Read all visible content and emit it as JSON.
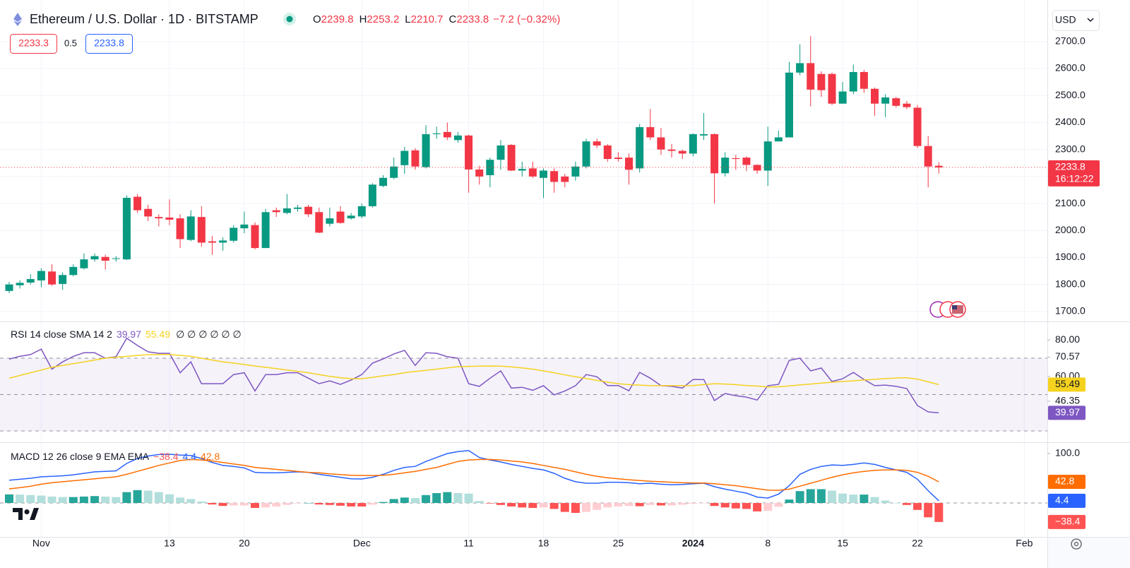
{
  "chart_data": [
    {
      "type": "candlestick",
      "title": "Ethereum / U.S. Dollar · 1D · BITSTAMP",
      "currency": "USD",
      "bid": 2233.3,
      "spread": 0.5,
      "ask": 2233.8,
      "ohlc_letters": [
        "O",
        "H",
        "L",
        "C"
      ],
      "change_label": "−7.2 (−0.32%)",
      "countdown": "16:12:22",
      "categories": [
        null,
        null,
        null,
        "Nov",
        null,
        null,
        null,
        null,
        null,
        null,
        null,
        null,
        null,
        null,
        null,
        "13",
        null,
        null,
        null,
        null,
        null,
        null,
        "20",
        null,
        null,
        null,
        null,
        null,
        null,
        null,
        null,
        null,
        null,
        "Dec",
        null,
        null,
        null,
        null,
        null,
        null,
        null,
        null,
        null,
        "11",
        null,
        null,
        null,
        null,
        null,
        null,
        "18",
        null,
        null,
        null,
        null,
        null,
        null,
        "25",
        null,
        null,
        null,
        null,
        null,
        null,
        "2024",
        null,
        null,
        null,
        null,
        null,
        null,
        "8",
        null,
        null,
        null,
        null,
        null,
        null,
        "15",
        null,
        null,
        null,
        null,
        null,
        null,
        "22",
        null,
        null,
        null,
        null,
        null,
        null,
        null,
        null,
        null,
        "Feb",
        null
      ],
      "open": [
        1776,
        1797,
        1807,
        1815,
        1848,
        1802,
        1835,
        1860,
        1893,
        1902,
        1895,
        1893,
        2125,
        2080,
        2050,
        2048,
        2045,
        1965,
        2050,
        1960,
        1955,
        1962,
        2008,
        2020,
        1935,
        2075,
        2065,
        2080,
        2088,
        2068,
        2025,
        2070,
        2045,
        2052,
        2090,
        2165,
        2195,
        2242,
        2297,
        2235,
        2357,
        2365,
        2335,
        2352,
        2226,
        2205,
        2262,
        2317,
        2222,
        2230,
        2195,
        2220,
        2200,
        2200,
        2237,
        2330,
        2315,
        2270,
        2270,
        2230,
        2383,
        2345,
        2300,
        2295,
        2285,
        2352,
        2357,
        2212,
        2268,
        2270,
        2243,
        2222,
        2330,
        2345,
        2585,
        2620,
        2580,
        2580,
        2470,
        2515,
        2587,
        2525,
        2470,
        2490,
        2470,
        2455,
        2313,
        2239.8,
        null,
        null,
        null,
        null,
        null,
        null,
        null,
        null,
        null
      ],
      "high": [
        1810,
        1815,
        1838,
        1860,
        1875,
        1845,
        1875,
        1915,
        1915,
        1910,
        1905,
        2130,
        2135,
        2095,
        2060,
        2115,
        2060,
        2075,
        2090,
        1980,
        1975,
        2020,
        2070,
        2030,
        2080,
        2085,
        2135,
        2095,
        2095,
        2085,
        2085,
        2090,
        2065,
        2100,
        2175,
        2205,
        2270,
        2310,
        2305,
        2390,
        2385,
        2400,
        2365,
        2355,
        2240,
        2270,
        2335,
        2320,
        2255,
        2255,
        2230,
        2230,
        2210,
        2255,
        2340,
        2340,
        2320,
        2290,
        2285,
        2395,
        2450,
        2380,
        2320,
        2300,
        2360,
        2435,
        2360,
        2290,
        2280,
        2275,
        2245,
        2385,
        2370,
        2625,
        2690,
        2720,
        2590,
        2585,
        2550,
        2615,
        2595,
        2530,
        2505,
        2495,
        2480,
        2465,
        2350,
        2253.2,
        null,
        null,
        null,
        null,
        null,
        null,
        null,
        null,
        null
      ],
      "low": [
        1768,
        1785,
        1800,
        1790,
        1795,
        1780,
        1830,
        1855,
        1885,
        1855,
        1885,
        1890,
        2065,
        2035,
        2015,
        2020,
        1935,
        1960,
        1940,
        1910,
        1925,
        1955,
        1990,
        1930,
        1935,
        2050,
        2060,
        2070,
        2050,
        1990,
        2015,
        2025,
        2040,
        2045,
        2085,
        2160,
        2190,
        2210,
        2225,
        2230,
        2340,
        2335,
        2325,
        2140,
        2170,
        2160,
        2225,
        2220,
        2200,
        2195,
        2120,
        2140,
        2160,
        2185,
        2230,
        2305,
        2255,
        2255,
        2170,
        2215,
        2335,
        2280,
        2270,
        2265,
        2275,
        2335,
        2100,
        2200,
        2225,
        2220,
        2210,
        2165,
        2330,
        2345,
        2575,
        2460,
        2495,
        2465,
        2470,
        2505,
        2510,
        2425,
        2420,
        2455,
        2450,
        2305,
        2160,
        2210.7,
        null,
        null,
        null,
        null,
        null,
        null,
        null,
        null,
        null
      ],
      "close": [
        1800,
        1806,
        1820,
        1850,
        1800,
        1835,
        1865,
        1893,
        1905,
        1888,
        1897,
        2121,
        2075,
        2052,
        2045,
        2040,
        1968,
        2052,
        1955,
        1955,
        1963,
        2010,
        2022,
        1935,
        2068,
        2068,
        2082,
        2085,
        2060,
        1992,
        2045,
        2028,
        2055,
        2090,
        2170,
        2195,
        2237,
        2295,
        2237,
        2357,
        2360,
        2345,
        2352,
        2226,
        2200,
        2262,
        2315,
        2222,
        2228,
        2200,
        2222,
        2180,
        2180,
        2237,
        2330,
        2315,
        2265,
        2265,
        2225,
        2383,
        2345,
        2300,
        2295,
        2285,
        2357,
        2357,
        2212,
        2270,
        2265,
        2243,
        2222,
        2330,
        2345,
        2585,
        2620,
        2522,
        2520,
        2470,
        2515,
        2587,
        2525,
        2470,
        2493,
        2462,
        2457,
        2313,
        2237,
        2233.8,
        null,
        null,
        null,
        null,
        null,
        null,
        null,
        null,
        null
      ],
      "up_color": "#089981",
      "down_color": "#f23645",
      "ylim": [
        1663,
        2854
      ],
      "yticks": [
        {
          "value": 2700,
          "label": "2700.0"
        },
        {
          "value": 2600,
          "label": "2600.0"
        },
        {
          "value": 2500,
          "label": "2500.0"
        },
        {
          "value": 2400,
          "label": "2400.0"
        },
        {
          "value": 2300,
          "label": "2300.0"
        },
        {
          "value": 2200,
          "label": "2200.0"
        },
        {
          "value": 2100,
          "label": "2100.0"
        },
        {
          "value": 2000,
          "label": "2000.0"
        },
        {
          "value": 1900,
          "label": "1900.0"
        },
        {
          "value": 1800,
          "label": "1800.0"
        },
        {
          "value": 1700,
          "label": "1700.0"
        }
      ],
      "grid": true
    },
    {
      "type": "line",
      "title": "RSI 14 close SMA 14 2",
      "placeholders": "∅ ∅ ∅ ∅ ∅ ∅",
      "series": [
        {
          "color": "#7e57c2",
          "values": [
            69.5,
            71,
            72,
            75,
            64,
            68,
            71,
            73,
            73,
            70,
            70.8,
            81,
            77,
            73.5,
            72.7,
            72.7,
            62,
            68,
            56,
            56,
            56,
            61,
            62,
            52,
            61,
            61,
            62,
            62,
            59,
            56,
            57.5,
            55.6,
            58,
            61,
            67.3,
            69.6,
            72.3,
            74.3,
            66,
            73,
            72.7,
            70.8,
            70,
            56,
            54.5,
            59,
            63,
            53.6,
            54,
            52.4,
            54.9,
            49.8,
            52,
            54.9,
            61,
            59.8,
            55,
            55,
            52.1,
            62.2,
            59,
            54.9,
            54.5,
            53.6,
            58.3,
            58.3,
            46.7,
            50.6,
            49.4,
            48.6,
            47,
            54.9,
            55.6,
            68.8,
            70,
            63,
            64.6,
            57.2,
            58.7,
            62.2,
            58.3,
            54.9,
            55.2,
            54.5,
            53.3,
            44,
            40.5,
            39.97,
            null,
            null,
            null,
            null,
            null,
            null,
            null,
            null,
            null
          ]
        },
        {
          "color": "#f5d21e",
          "values": [
            59,
            60.5,
            62,
            63.5,
            65,
            66,
            67,
            68,
            69,
            70,
            70.5,
            71,
            71.5,
            72,
            72,
            72,
            71.5,
            71,
            70,
            69,
            68,
            67.3,
            66.5,
            65.7,
            65,
            64.3,
            63.5,
            62.8,
            62,
            61,
            60,
            59.3,
            58.7,
            58.7,
            59.5,
            60.3,
            61,
            62,
            62.7,
            63.3,
            64,
            64.7,
            65.3,
            65.5,
            65.6,
            65.7,
            65.6,
            65.2,
            64.7,
            64,
            63,
            62,
            60.8,
            59.8,
            58.8,
            57.8,
            56.8,
            56,
            55.5,
            55.2,
            54.9,
            54.9,
            54.9,
            54.9,
            55,
            55.5,
            56,
            55.8,
            55.5,
            55,
            54.7,
            54.2,
            54.3,
            54.8,
            55.3,
            55.8,
            56.3,
            56.8,
            57.2,
            57.6,
            58,
            58.4,
            58.8,
            59.1,
            59.3,
            58.5,
            57,
            55.49,
            null,
            null,
            null,
            null,
            null,
            null,
            null,
            null,
            null
          ]
        }
      ],
      "levels": [
        70,
        50,
        30
      ],
      "band_color": "#7e57c2",
      "ylim": [
        24.2,
        89.8
      ],
      "yticks": [
        {
          "value": 80,
          "label": "80.00"
        },
        70.57,
        {
          "value": 60,
          "label": "60.00"
        },
        46.35
      ]
    },
    {
      "type": "macd",
      "title": "MACD 12 26 close 9 EMA EMA",
      "series": [
        {
          "type": "histogram",
          "colors": {
            "grow_above": "#26a69a",
            "fall_above": "#b2dfdb",
            "grow_below": "#ffcdd2",
            "fall_below": "#ff5252"
          },
          "values": [
            17.4,
            17,
            16,
            15,
            13,
            12,
            12,
            13,
            14,
            13,
            12,
            22,
            26,
            25,
            22,
            17.6,
            11,
            8,
            3,
            -3,
            -6,
            -5,
            -5,
            -10,
            -9,
            -7,
            -4,
            -1,
            0,
            -3,
            -4,
            -5.5,
            -7,
            -7.1,
            -3.5,
            2,
            8,
            11,
            10,
            16,
            20,
            22,
            20,
            19,
            4,
            -1,
            -4,
            -7,
            -9,
            -10,
            -9,
            -12,
            -18,
            -20,
            -18,
            -14,
            -9,
            -7,
            -6,
            -6.5,
            -4,
            -5,
            -5,
            -3.5,
            -1.5,
            -0.2,
            -6,
            -9,
            -11,
            -12,
            -17,
            -16,
            -7.7,
            7,
            24,
            28,
            28,
            25,
            19,
            17,
            17,
            12,
            5,
            0,
            -4,
            -14,
            -29,
            -38.4,
            null,
            null,
            null,
            null,
            null,
            null,
            null,
            null,
            null
          ],
          "value_labels": [
            null,
            null,
            null,
            null,
            null,
            null,
            null,
            null,
            null,
            null,
            null,
            null,
            null,
            null,
            null,
            null,
            null,
            null,
            null,
            null,
            null,
            null,
            null,
            null,
            null,
            null,
            null,
            null,
            null,
            null,
            null,
            null,
            null,
            null,
            null,
            null,
            null,
            null,
            null,
            null,
            null,
            null,
            null,
            null,
            null,
            null,
            null,
            null,
            null,
            null,
            null,
            null,
            null,
            null,
            null,
            null,
            null,
            null,
            null,
            null,
            null,
            null,
            null,
            null,
            null,
            null,
            null,
            null,
            null,
            null,
            null,
            null,
            null,
            null,
            null,
            null,
            null,
            null,
            null,
            null,
            null,
            null,
            null,
            null,
            null,
            null,
            null,
            "−38.4",
            null,
            null,
            null,
            null,
            null,
            null,
            null,
            null,
            null
          ]
        },
        {
          "type": "line",
          "color": "#2962ff",
          "values": [
            46,
            48,
            50,
            53,
            54,
            55,
            57,
            60,
            63,
            64,
            65,
            80,
            90,
            95,
            98,
            98.6,
            97,
            96,
            90,
            82,
            76,
            74,
            71,
            62,
            61,
            61,
            62,
            63,
            62,
            58,
            55,
            52,
            49,
            48.6,
            52,
            58,
            66,
            72,
            74,
            84,
            92,
            100,
            104,
            106,
            92,
            87,
            83,
            78,
            74,
            70,
            67,
            60,
            50,
            43,
            40,
            40,
            42,
            42,
            41,
            39,
            40,
            38,
            37,
            37.5,
            39,
            40,
            33,
            28,
            24,
            20,
            12,
            10,
            18,
            35,
            58,
            68,
            74,
            77,
            76,
            78,
            81,
            78,
            72,
            67,
            62,
            48,
            25,
            4.4,
            null,
            null,
            null,
            null,
            null,
            null,
            null,
            null,
            null
          ]
        },
        {
          "type": "line",
          "color": "#ff6d00",
          "values": [
            28.6,
            31,
            34,
            38,
            41,
            43,
            45,
            47,
            49,
            51,
            53,
            58,
            64,
            70,
            76,
            81,
            86,
            88,
            87,
            85,
            82,
            79,
            76,
            72,
            70,
            68,
            66,
            64,
            62,
            61,
            59,
            57.5,
            56,
            55.7,
            55.5,
            56,
            58,
            61,
            64,
            68,
            72,
            78,
            84,
            87,
            88,
            88,
            87,
            85,
            83,
            80,
            76,
            72,
            68,
            63,
            58,
            54,
            51,
            49,
            47,
            45.5,
            44,
            43,
            42,
            41,
            40.5,
            40.2,
            39,
            37,
            35,
            32,
            29,
            26,
            25.7,
            28,
            34,
            40,
            46,
            52,
            57,
            61,
            64,
            66,
            67,
            67,
            66,
            62,
            54,
            42.8,
            null,
            null,
            null,
            null,
            null,
            null,
            null,
            null,
            null
          ]
        }
      ],
      "ylim": [
        -68.6,
        121.4
      ],
      "yticks": [
        {
          "value": 100,
          "label": "100.0"
        }
      ]
    }
  ]
}
